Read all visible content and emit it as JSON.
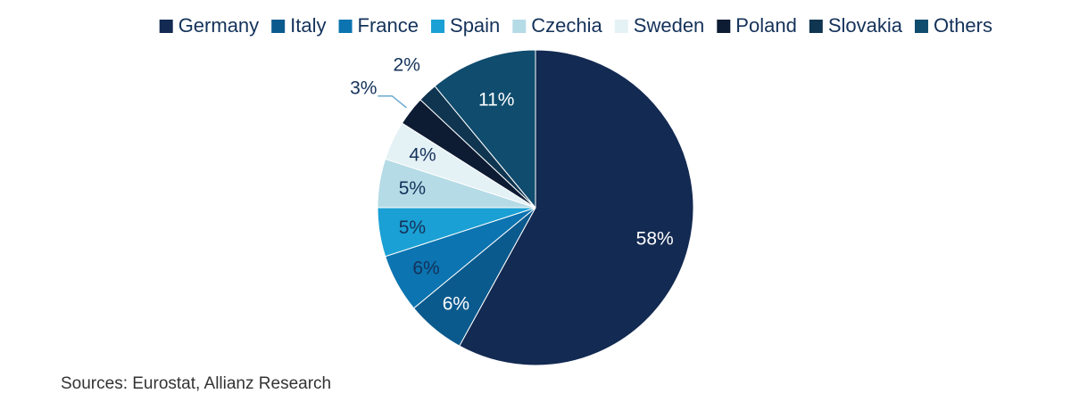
{
  "chart_data": {
    "type": "pie",
    "title": "",
    "categories": [
      "Germany",
      "Italy",
      "France",
      "Spain",
      "Czechia",
      "Sweden",
      "Poland",
      "Slovakia",
      "Others"
    ],
    "values": [
      58,
      6,
      6,
      5,
      5,
      4,
      3,
      2,
      11
    ],
    "value_labels": [
      "58%",
      "6%",
      "6%",
      "5%",
      "5%",
      "4%",
      "3%",
      "2%",
      "11%"
    ],
    "colors": [
      "#132a52",
      "#0b5a8e",
      "#0c74b0",
      "#1aa0d4",
      "#b5dbe6",
      "#e4f1f5",
      "#0d1b33",
      "#0f3550",
      "#0f4c6e"
    ],
    "label_colors": [
      "#ffffff",
      "#ffffff",
      "#14325a",
      "#14325a",
      "#14325a",
      "#14325a",
      "#14325a",
      "#14325a",
      "#ffffff"
    ],
    "start_angle_deg": 0,
    "direction": "clockwise",
    "legend_position": "top"
  },
  "source_note": "Sources: Eurostat, Allianz Research"
}
